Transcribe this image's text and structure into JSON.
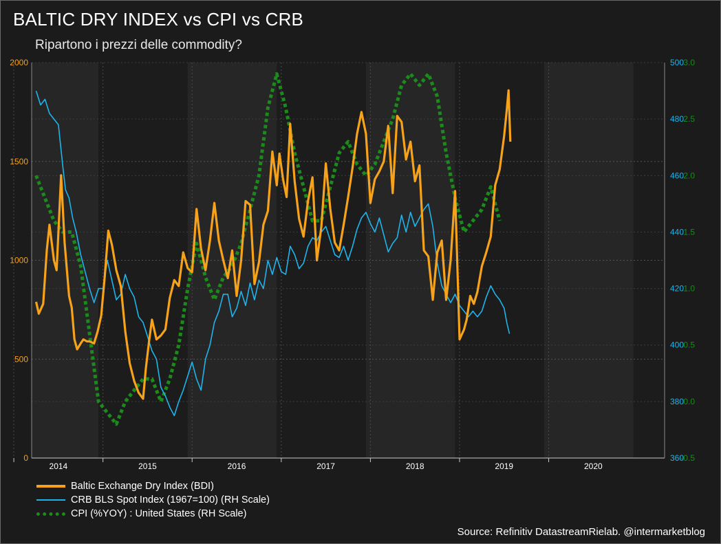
{
  "header": {
    "title": "BALTIC DRY INDEX vs CPI vs CRB",
    "subtitle": "Ripartono i prezzi delle commodity?"
  },
  "footer": {
    "source": "Source: Refinitiv DatastreamRielab. @intermarketblog"
  },
  "colors": {
    "background": "#1b1b1b",
    "bdi": "#f7a21b",
    "crb": "#1eb4ec",
    "cpi": "#1c8a1c",
    "left_axis": "#f7a21b",
    "right_axis_crb": "#1eb4ec",
    "right_axis_cpi": "#1c8a1c"
  },
  "legend": {
    "bdi": "Baltic Exchange Dry Index (BDI)",
    "crb": "CRB BLS Spot Index (1967=100) (RH Scale)",
    "cpi": "CPI (%YOY) : United States (RH Scale)"
  },
  "chart_data": {
    "type": "line",
    "grid": true,
    "legend_placement": "bottom-left",
    "x_axis": {
      "range": [
        2013.7,
        2020.8
      ],
      "tick_labels": [
        "2014",
        "2015",
        "2016",
        "2017",
        "2018",
        "2019",
        "2020"
      ],
      "tick_values": [
        2014,
        2015,
        2016,
        2017,
        2018,
        2019,
        2020
      ]
    },
    "y_axis_left": {
      "range": [
        0,
        2000
      ],
      "tick_labels": [
        "0",
        "500",
        "1000",
        "1500",
        "2000"
      ],
      "tick_values": [
        0,
        500,
        1000,
        1500,
        2000
      ]
    },
    "y_axis_right_crb": {
      "range": [
        360,
        500
      ],
      "tick_labels": [
        "360",
        "380",
        "400",
        "420",
        "440",
        "460",
        "480",
        "500"
      ],
      "tick_values": [
        360,
        380,
        400,
        420,
        440,
        460,
        480,
        500
      ]
    },
    "y_axis_right_cpi": {
      "range": [
        -0.5,
        3.0
      ],
      "tick_labels": [
        "-0.5",
        "0.0",
        "0.5",
        "1.0",
        "1.5",
        "2.0",
        "2.5",
        "3.0"
      ],
      "tick_values": [
        -0.5,
        0.0,
        0.5,
        1.0,
        1.5,
        2.0,
        2.5,
        3.0
      ]
    },
    "series": [
      {
        "name": "Baltic Exchange Dry Index (BDI)",
        "axis": "left",
        "x": [
          2013.75,
          2013.78,
          2013.83,
          2013.87,
          2013.9,
          2013.95,
          2013.98,
          2014.03,
          2014.07,
          2014.12,
          2014.15,
          2014.18,
          2014.21,
          2014.25,
          2014.28,
          2014.32,
          2014.35,
          2014.4,
          2014.44,
          2014.48,
          2014.52,
          2014.56,
          2014.6,
          2014.65,
          2014.7,
          2014.75,
          2014.8,
          2014.85,
          2014.9,
          2014.95,
          2014.98,
          2015.02,
          2015.05,
          2015.1,
          2015.15,
          2015.2,
          2015.25,
          2015.3,
          2015.35,
          2015.4,
          2015.45,
          2015.5,
          2015.55,
          2015.6,
          2015.65,
          2015.7,
          2015.75,
          2015.8,
          2015.85,
          2015.9,
          2015.95,
          2016.0,
          2016.05,
          2016.1,
          2016.15,
          2016.2,
          2016.25,
          2016.3,
          2016.35,
          2016.4,
          2016.45,
          2016.48,
          2016.52,
          2016.56,
          2016.6,
          2016.65,
          2016.7,
          2016.75,
          2016.8,
          2016.85,
          2016.9,
          2016.95,
          2017.0,
          2017.05,
          2017.1,
          2017.15,
          2017.2,
          2017.25,
          2017.3,
          2017.35,
          2017.4,
          2017.45,
          2017.5,
          2017.55,
          2017.6,
          2017.65,
          2017.7,
          2017.75,
          2017.8,
          2017.85,
          2017.9,
          2017.95,
          2018.0,
          2018.05,
          2018.1,
          2018.15,
          2018.2,
          2018.25,
          2018.3,
          2018.35,
          2018.4,
          2018.45,
          2018.5,
          2018.55,
          2018.58,
          2018.62,
          2018.66,
          2018.7,
          2018.75,
          2018.8,
          2018.85,
          2018.9,
          2018.95,
          2019.0,
          2019.03,
          2019.05,
          2019.07
        ],
        "y": [
          790,
          730,
          780,
          1050,
          1180,
          1000,
          950,
          1430,
          1090,
          820,
          760,
          600,
          550,
          580,
          600,
          590,
          590,
          580,
          640,
          720,
          920,
          1150,
          1080,
          950,
          870,
          640,
          480,
          390,
          330,
          300,
          450,
          600,
          700,
          600,
          620,
          650,
          810,
          900,
          870,
          1040,
          960,
          940,
          1260,
          1060,
          950,
          1100,
          1290,
          1100,
          1000,
          910,
          1050,
          820,
          1000,
          1300,
          1280,
          880,
          990,
          1180,
          1250,
          1550,
          1380,
          1540,
          1410,
          1320,
          1690,
          1400,
          1210,
          1120,
          1300,
          1420,
          1000,
          1170,
          1490,
          1260,
          1090,
          1050,
          1180,
          1320,
          1470,
          1640,
          1750,
          1640,
          1290,
          1410,
          1450,
          1500,
          1680,
          1340,
          1730,
          1700,
          1510,
          1600,
          1400,
          1480,
          1050,
          1020,
          800,
          1040,
          1100,
          800,
          1000,
          1350,
          600,
          650,
          700,
          820,
          780,
          840,
          970,
          1040,
          1120,
          1380,
          1460,
          1630,
          1760,
          1860,
          1600
        ],
        "y_note": "see below"
      },
      {
        "name": "CRB BLS Spot Index (1967=100) (RH Scale)",
        "axis": "right_crb",
        "x": [
          2013.75,
          2013.8,
          2013.85,
          2013.9,
          2013.95,
          2014.0,
          2014.05,
          2014.08,
          2014.12,
          2014.16,
          2014.2,
          2014.25,
          2014.3,
          2014.35,
          2014.4,
          2014.45,
          2014.5,
          2014.55,
          2014.6,
          2014.65,
          2014.7,
          2014.75,
          2014.8,
          2014.85,
          2014.9,
          2014.95,
          2015.0,
          2015.05,
          2015.1,
          2015.15,
          2015.2,
          2015.25,
          2015.3,
          2015.35,
          2015.4,
          2015.45,
          2015.5,
          2015.55,
          2015.6,
          2015.65,
          2015.7,
          2015.75,
          2015.8,
          2015.85,
          2015.9,
          2015.95,
          2016.0,
          2016.05,
          2016.1,
          2016.15,
          2016.2,
          2016.25,
          2016.3,
          2016.35,
          2016.4,
          2016.45,
          2016.5,
          2016.55,
          2016.6,
          2016.65,
          2016.7,
          2016.75,
          2016.8,
          2016.85,
          2016.9,
          2016.95,
          2017.0,
          2017.05,
          2017.1,
          2017.15,
          2017.2,
          2017.25,
          2017.3,
          2017.35,
          2017.4,
          2017.45,
          2017.5,
          2017.55,
          2017.6,
          2017.65,
          2017.7,
          2017.75,
          2017.8,
          2017.85,
          2017.9,
          2017.95,
          2018.0,
          2018.05,
          2018.1,
          2018.15,
          2018.2,
          2018.25,
          2018.3,
          2018.35,
          2018.4,
          2018.45,
          2018.5,
          2018.55,
          2018.6,
          2018.65,
          2018.7,
          2018.75,
          2018.8,
          2018.85,
          2018.9,
          2018.95,
          2019.0,
          2019.03,
          2019.06
        ],
        "y": [
          490,
          485,
          487,
          482,
          480,
          478,
          463,
          455,
          452,
          445,
          440,
          432,
          426,
          420,
          415,
          420,
          420,
          430,
          423,
          416,
          418,
          425,
          420,
          417,
          410,
          408,
          403,
          398,
          395,
          385,
          382,
          378,
          375,
          380,
          384,
          389,
          394,
          388,
          384,
          395,
          400,
          408,
          412,
          418,
          418,
          410,
          413,
          419,
          414,
          422,
          416,
          423,
          420,
          430,
          425,
          431,
          426,
          425,
          435,
          432,
          427,
          429,
          435,
          438,
          437,
          440,
          442,
          437,
          432,
          431,
          435,
          430,
          435,
          441,
          445,
          447,
          443,
          440,
          445,
          439,
          433,
          436,
          438,
          446,
          440,
          447,
          442,
          445,
          448,
          450,
          442,
          429,
          421,
          418,
          415,
          418,
          414,
          412,
          410,
          412,
          410,
          412,
          417,
          421,
          418,
          416,
          413,
          408,
          404
        ],
        "y_note": "see below"
      },
      {
        "name": "CPI (%YOY) : United States (RH Scale)",
        "axis": "right_cpi",
        "x": [
          2013.75,
          2013.85,
          2013.95,
          2014.05,
          2014.15,
          2014.25,
          2014.35,
          2014.45,
          2014.55,
          2014.65,
          2014.75,
          2014.85,
          2014.95,
          2015.05,
          2015.15,
          2015.25,
          2015.35,
          2015.45,
          2015.55,
          2015.65,
          2015.75,
          2015.85,
          2015.95,
          2016.05,
          2016.15,
          2016.25,
          2016.35,
          2016.45,
          2016.55,
          2016.65,
          2016.75,
          2016.85,
          2016.95,
          2017.05,
          2017.15,
          2017.25,
          2017.35,
          2017.45,
          2017.55,
          2017.65,
          2017.75,
          2017.85,
          2017.95,
          2018.05,
          2018.15,
          2018.25,
          2018.35,
          2018.45,
          2018.55,
          2018.65,
          2018.75,
          2018.85,
          2018.95
        ],
        "y": [
          2.0,
          1.8,
          1.6,
          1.5,
          1.5,
          1.2,
          0.6,
          0.0,
          -0.1,
          -0.2,
          0.0,
          0.1,
          0.2,
          0.2,
          0.0,
          0.2,
          0.5,
          1.0,
          1.4,
          1.1,
          0.9,
          1.1,
          1.2,
          1.4,
          1.7,
          2.0,
          2.6,
          2.9,
          2.6,
          2.2,
          1.9,
          1.6,
          1.6,
          1.9,
          2.2,
          2.3,
          2.1,
          2.0,
          2.1,
          2.3,
          2.5,
          2.8,
          2.9,
          2.8,
          2.9,
          2.7,
          2.2,
          1.8,
          1.5,
          1.6,
          1.7,
          1.9,
          1.6
        ]
      }
    ]
  }
}
